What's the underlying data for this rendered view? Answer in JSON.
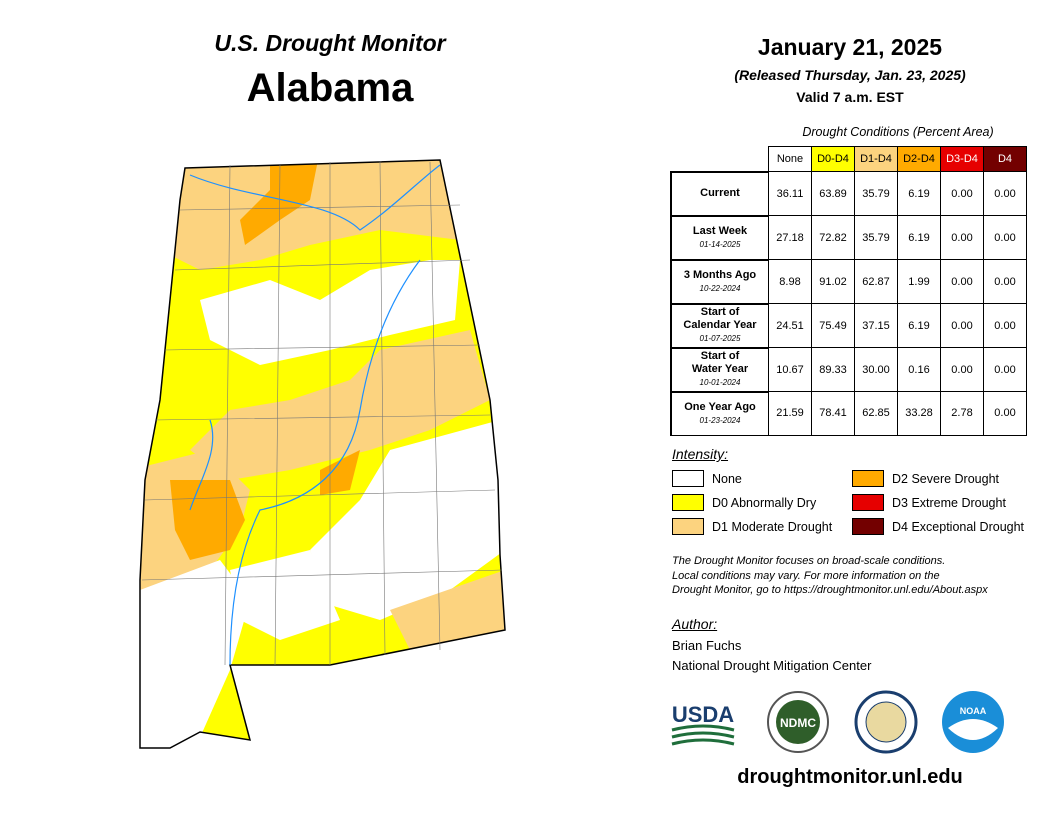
{
  "header": {
    "program": "U.S. Drought Monitor",
    "state": "Alabama"
  },
  "date": {
    "title": "January 21, 2025",
    "released": "(Released Thursday, Jan. 23, 2025)",
    "valid": "Valid 7 a.m. EST"
  },
  "table": {
    "caption": "Drought Conditions (Percent Area)",
    "columns": [
      {
        "label": "None",
        "color": "#ffffff",
        "text_color": "#000000"
      },
      {
        "label": "D0-D4",
        "color": "#ffff00",
        "text_color": "#000000"
      },
      {
        "label": "D1-D4",
        "color": "#fcd37f",
        "text_color": "#000000"
      },
      {
        "label": "D2-D4",
        "color": "#ffaa00",
        "text_color": "#000000"
      },
      {
        "label": "D3-D4",
        "color": "#e60000",
        "text_color": "#ffffff"
      },
      {
        "label": "D4",
        "color": "#730000",
        "text_color": "#ffffff"
      }
    ],
    "rows": [
      {
        "label": [
          "Current"
        ],
        "cells": [
          "36.11",
          "63.89",
          "35.79",
          "6.19",
          "0.00",
          "0.00"
        ]
      },
      {
        "label": [
          "Last Week"
        ],
        "date": "01-14-2025",
        "cells": [
          "27.18",
          "72.82",
          "35.79",
          "6.19",
          "0.00",
          "0.00"
        ]
      },
      {
        "label": [
          "3 Months Ago"
        ],
        "date": "10-22-2024",
        "cells": [
          "8.98",
          "91.02",
          "62.87",
          "1.99",
          "0.00",
          "0.00"
        ]
      },
      {
        "label": [
          "Start of",
          "Calendar Year"
        ],
        "date": "01-07-2025",
        "cells": [
          "24.51",
          "75.49",
          "37.15",
          "6.19",
          "0.00",
          "0.00"
        ]
      },
      {
        "label": [
          "Start of",
          "Water Year"
        ],
        "date": "10-01-2024",
        "cells": [
          "10.67",
          "89.33",
          "30.00",
          "0.16",
          "0.00",
          "0.00"
        ]
      },
      {
        "label": [
          "One Year Ago"
        ],
        "date": "01-23-2024",
        "cells": [
          "21.59",
          "78.41",
          "62.85",
          "33.28",
          "2.78",
          "0.00"
        ]
      }
    ]
  },
  "legend": {
    "title": "Intensity:",
    "items": [
      {
        "label": "None",
        "color": "#ffffff"
      },
      {
        "label": "D0 Abnormally Dry",
        "color": "#ffff00"
      },
      {
        "label": "D1 Moderate Drought",
        "color": "#fcd37f"
      },
      {
        "label": "D2 Severe Drought",
        "color": "#ffaa00"
      },
      {
        "label": "D3 Extreme Drought",
        "color": "#e60000"
      },
      {
        "label": "D4 Exceptional Drought",
        "color": "#730000"
      }
    ]
  },
  "note": [
    "The Drought Monitor focuses on broad-scale conditions.",
    "Local conditions may vary. For more information on the",
    "Drought Monitor, go to https://droughtmonitor.unl.edu/About.aspx"
  ],
  "author": {
    "title": "Author:",
    "lines": [
      "Brian Fuchs",
      "National Drought Mitigation Center"
    ]
  },
  "logos": {
    "usda": "USDA",
    "ndmc": "NDMC",
    "noaa": "NOAA"
  },
  "website": "droughtmonitor.unl.edu"
}
